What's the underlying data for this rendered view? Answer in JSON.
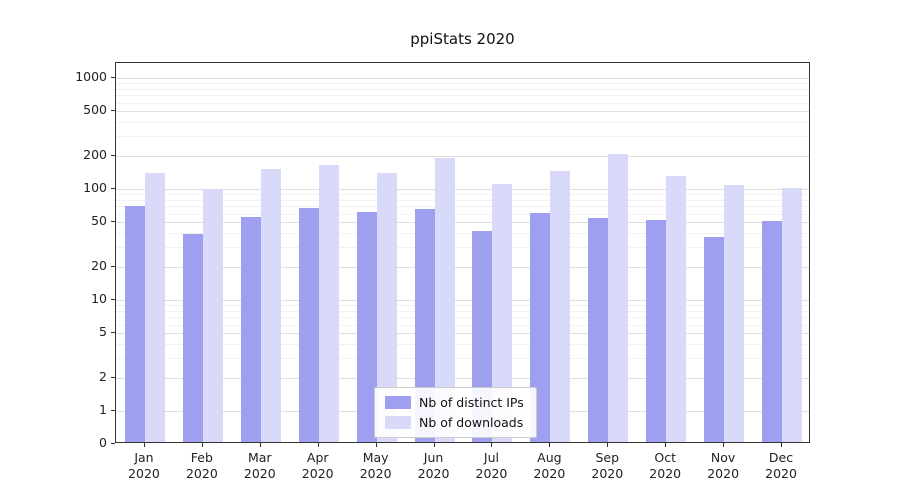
{
  "title": "ppiStats 2020",
  "chart_data": {
    "type": "bar",
    "title": "ppiStats 2020",
    "yscale": "symlog",
    "grid": true,
    "legend_position": "lower center",
    "xlabel": "",
    "ylabel": "",
    "months": [
      "Jan",
      "Feb",
      "Mar",
      "Apr",
      "May",
      "Jun",
      "Jul",
      "Aug",
      "Sep",
      "Oct",
      "Nov",
      "Dec"
    ],
    "year": "2020",
    "categories": [
      "Jan 2020",
      "Feb 2020",
      "Mar 2020",
      "Apr 2020",
      "May 2020",
      "Jun 2020",
      "Jul 2020",
      "Aug 2020",
      "Sep 2020",
      "Oct 2020",
      "Nov 2020",
      "Dec 2020"
    ],
    "yticks": [
      0,
      1,
      2,
      5,
      10,
      20,
      50,
      100,
      200,
      500,
      1000
    ],
    "minor_gridlines": [
      3,
      4,
      6,
      7,
      8,
      9,
      30,
      40,
      60,
      70,
      80,
      90,
      300,
      400,
      600,
      700,
      800,
      900
    ],
    "ylim": [
      0,
      1000
    ],
    "series": [
      {
        "name": "Nb of distinct IPs",
        "slug": "distinct-ips",
        "color": "#9f9fef",
        "values": [
          70,
          39,
          56,
          68,
          62,
          66,
          42,
          61,
          55,
          53,
          37,
          51
        ]
      },
      {
        "name": "Nb of downloads",
        "slug": "downloads",
        "color": "#d9d9f9",
        "values": [
          140,
          101,
          152,
          165,
          140,
          190,
          112,
          145,
          205,
          132,
          108,
          102
        ]
      }
    ]
  }
}
